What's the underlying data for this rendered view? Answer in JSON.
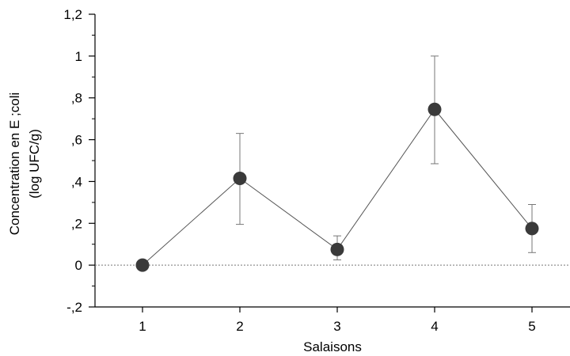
{
  "chart_data": {
    "type": "scatter",
    "xlabel": "Salaisons",
    "ylabel_lines": [
      "Concentration en E ;coli",
      "(log UFC/g)"
    ],
    "x_categories": [
      "1",
      "2",
      "3",
      "4",
      "5"
    ],
    "y_ticks": [
      -0.2,
      0,
      0.2,
      0.4,
      0.6,
      0.8,
      1.0,
      1.2
    ],
    "y_tick_labels": [
      "-,2",
      "0",
      ",2",
      ",4",
      ",6",
      ",8",
      "1",
      "1,2"
    ],
    "ylim": [
      -0.2,
      1.2
    ],
    "series": [
      {
        "x": [
          1,
          2,
          3,
          4,
          5
        ],
        "values": [
          0.0,
          0.415,
          0.075,
          0.745,
          0.175
        ],
        "error_low": [
          null,
          0.195,
          0.025,
          0.485,
          0.06
        ],
        "error_high": [
          null,
          0.63,
          0.14,
          1.0,
          0.29
        ],
        "marker": "filled-circle",
        "connected_by_line": true
      }
    ],
    "reference_line": {
      "y": 0,
      "style": "dotted"
    },
    "grid": false,
    "colors": {
      "marker": "#3a3a3a",
      "line": "#555555",
      "error_bar": "#777777",
      "axis": "#000000"
    }
  }
}
